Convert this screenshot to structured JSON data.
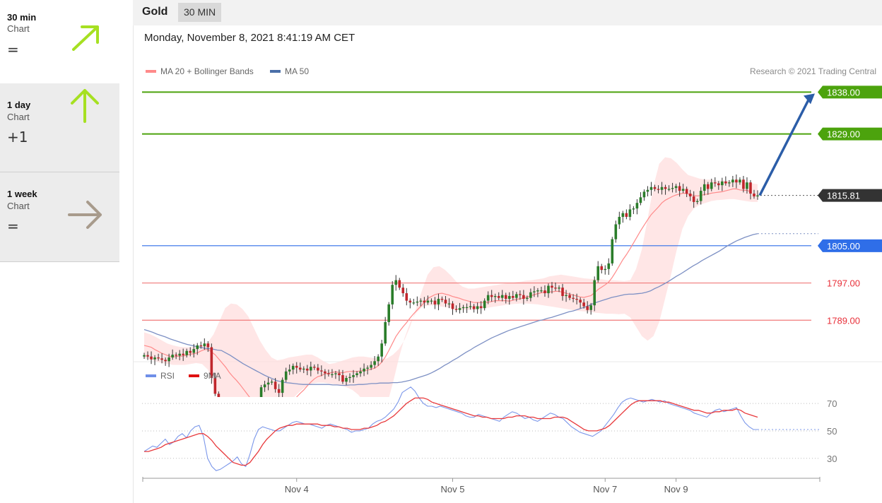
{
  "sidebar": [
    {
      "period": "30 min",
      "sub": "Chart",
      "value": "=",
      "arrow": "up-right",
      "color": "#9acd1c"
    },
    {
      "period": "1 day",
      "sub": "Chart",
      "value": "+1",
      "arrow": "up",
      "color": "#9acd1c"
    },
    {
      "period": "1 week",
      "sub": "Chart",
      "value": "=",
      "arrow": "right",
      "color": "#a89b8c"
    }
  ],
  "header": {
    "instrument": "Gold",
    "timeframe": "30 MIN"
  },
  "datetime": "Monday, November 8, 2021 8:41:19 AM CET",
  "chart_data": [
    {
      "type": "candlestick",
      "legend": [
        {
          "label": "MA 20 + Bollinger Bands",
          "color": "#ff8a8a"
        },
        {
          "label": "MA 50",
          "color": "#4a6fa8"
        }
      ],
      "credit": "Research © 2021 Trading Central",
      "ylim": [
        1781,
        1842
      ],
      "levels": [
        {
          "value": 1838.0,
          "label": "1838.00",
          "color": "#4ca30d",
          "text_color": "#ffffff",
          "kind": "target"
        },
        {
          "value": 1829.0,
          "label": "1829.00",
          "color": "#4ca30d",
          "text_color": "#ffffff",
          "kind": "resistance"
        },
        {
          "value": 1815.81,
          "label": "1815.81",
          "color": "#333333",
          "text_color": "#ffffff",
          "kind": "last"
        },
        {
          "value": 1805.0,
          "label": "1805.00",
          "color": "#2f6ee8",
          "text_color": "#ffffff",
          "kind": "pivot"
        },
        {
          "value": 1797.0,
          "label": "1797.00",
          "color": "#f07a7a",
          "text_color": "#e8303a",
          "kind": "support"
        },
        {
          "value": 1789.0,
          "label": "1789.00",
          "color": "#f07a7a",
          "text_color": "#e8303a",
          "kind": "support"
        }
      ],
      "close": [
        1781.5,
        1781.2,
        1780.6,
        1781.0,
        1780.8,
        1780.5,
        1780.2,
        1781.0,
        1781.6,
        1781.4,
        1781.8,
        1781.5,
        1782.4,
        1782.0,
        1782.8,
        1783.6,
        1783.4,
        1784.0,
        1783.2,
        1776.6,
        1773.2,
        1769.6,
        1766.2,
        1764.6,
        1764.0,
        1764.2,
        1764.5,
        1764.1,
        1764.8,
        1764.6,
        1765.5,
        1767.0,
        1770.8,
        1774.6,
        1775.2,
        1775.6,
        1775.8,
        1774.2,
        1773.4,
        1776.2,
        1778.0,
        1778.4,
        1779.2,
        1778.8,
        1778.4,
        1778.6,
        1778.2,
        1779.0,
        1778.8,
        1778.2,
        1778.0,
        1777.6,
        1777.4,
        1777.4,
        1777.6,
        1777.2,
        1775.8,
        1776.6,
        1776.8,
        1777.2,
        1777.6,
        1778.0,
        1778.6,
        1778.8,
        1779.4,
        1780.2,
        1781.2,
        1784.0,
        1788.6,
        1792.4,
        1796.6,
        1797.6,
        1796.0,
        1794.8,
        1793.2,
        1792.8,
        1792.8,
        1793.0,
        1793.2,
        1792.8,
        1793.2,
        1793.2,
        1792.4,
        1793.6,
        1793.4,
        1792.6,
        1792.6,
        1791.4,
        1791.2,
        1791.6,
        1791.8,
        1791.8,
        1792.0,
        1791.4,
        1792.0,
        1791.6,
        1793.2,
        1794.4,
        1794.0,
        1794.2,
        1793.8,
        1794.4,
        1793.6,
        1794.2,
        1793.8,
        1794.6,
        1794.4,
        1793.6,
        1793.8,
        1795.0,
        1795.2,
        1795.4,
        1795.4,
        1794.8,
        1796.4,
        1796.0,
        1795.8,
        1796.0,
        1794.2,
        1794.4,
        1793.8,
        1793.6,
        1793.4,
        1792.8,
        1792.0,
        1791.2,
        1792.2,
        1797.6,
        1800.6,
        1799.8,
        1800.0,
        1801.2,
        1806.4,
        1809.6,
        1811.2,
        1812.0,
        1811.2,
        1812.8,
        1813.0,
        1814.2,
        1815.4,
        1816.6,
        1817.0,
        1817.6,
        1817.2,
        1817.0,
        1817.6,
        1817.2,
        1817.2,
        1817.4,
        1817.8,
        1816.8,
        1817.2,
        1816.2,
        1815.6,
        1814.4,
        1814.6,
        1816.8,
        1818.2,
        1817.2,
        1818.6,
        1818.4,
        1818.0,
        1818.8,
        1818.4,
        1818.6,
        1819.2,
        1818.6,
        1819.2,
        1817.2,
        1818.6,
        1816.2,
        1815.6,
        1815.81
      ],
      "ma20": [
        1783.6,
        1783.4,
        1783.2,
        1782.7,
        1782.3,
        1781.9,
        1781.6,
        1781.3,
        1781.1,
        1781.2,
        1781.3,
        1781.3,
        1781.5,
        1781.7,
        1781.8,
        1782.0,
        1782.4,
        1782.7,
        1782.7,
        1782.2,
        1781.6,
        1780.7,
        1779.8,
        1778.9,
        1777.8,
        1776.9,
        1776.1,
        1775.2,
        1774.2,
        1773.2,
        1772.2,
        1771.3,
        1770.7,
        1770.2,
        1769.9,
        1769.5,
        1769.3,
        1769.2,
        1769.4,
        1769.7,
        1770.3,
        1771.1,
        1771.7,
        1772.5,
        1773.3,
        1774.0,
        1774.9,
        1775.7,
        1776.4,
        1776.9,
        1777.1,
        1777.5,
        1777.6,
        1777.8,
        1777.9,
        1777.8,
        1777.7,
        1777.9,
        1778.0,
        1778.0,
        1778.0,
        1778.1,
        1778.2,
        1778.3,
        1778.5,
        1778.7,
        1779.2,
        1780.0,
        1781.1,
        1782.5,
        1784.0,
        1785.5,
        1786.6,
        1787.6,
        1788.5,
        1789.5,
        1790.4,
        1791.2,
        1792.0,
        1792.8,
        1793.7,
        1794.1,
        1794.5,
        1794.7,
        1794.8,
        1794.6,
        1794.4,
        1794.1,
        1793.9,
        1793.7,
        1793.4,
        1793.2,
        1793.0,
        1792.8,
        1792.8,
        1792.8,
        1792.8,
        1792.9,
        1793.0,
        1793.2,
        1793.2,
        1793.2,
        1793.2,
        1793.1,
        1793.3,
        1793.5,
        1793.6,
        1793.8,
        1794.0,
        1794.2,
        1794.5,
        1794.7,
        1794.9,
        1795.0,
        1795.1,
        1795.1,
        1795.2,
        1795.2,
        1795.0,
        1794.8,
        1794.6,
        1794.4,
        1794.2,
        1794.0,
        1793.9,
        1794.1,
        1794.3,
        1794.9,
        1795.6,
        1796.1,
        1796.6,
        1797.2,
        1798.2,
        1799.4,
        1800.7,
        1802.0,
        1803.1,
        1804.3,
        1805.6,
        1806.9,
        1808.2,
        1809.4,
        1810.6,
        1811.7,
        1812.5,
        1813.3,
        1814.2,
        1814.8,
        1815.2,
        1815.6,
        1815.9,
        1816.1,
        1816.3,
        1816.2,
        1816.0,
        1815.8,
        1815.7,
        1815.8,
        1816.0,
        1816.1,
        1816.3,
        1816.4,
        1816.5,
        1816.6,
        1816.8,
        1817.0,
        1817.2,
        1817.2,
        1817.0,
        1816.9,
        1816.9,
        1816.6
      ],
      "ma50": [
        1787.0,
        1786.7,
        1786.4,
        1786.0,
        1785.7,
        1785.4,
        1785.0,
        1784.7,
        1784.4,
        1784.1,
        1783.8,
        1783.6,
        1783.4,
        1783.2,
        1783.0,
        1782.9,
        1782.8,
        1782.6,
        1782.5,
        1782.0,
        1781.5,
        1780.9,
        1780.3,
        1779.7,
        1779.2,
        1778.7,
        1778.2,
        1777.7,
        1777.2,
        1776.8,
        1776.4,
        1776.0,
        1775.8,
        1775.6,
        1775.5,
        1775.4,
        1775.3,
        1775.2,
        1775.2,
        1775.2,
        1775.2,
        1775.2,
        1775.2,
        1775.2,
        1775.1,
        1775.1,
        1775.0,
        1775.0,
        1775.1,
        1775.1,
        1775.2,
        1775.2,
        1775.3,
        1775.4,
        1775.4,
        1775.5,
        1775.5,
        1775.5,
        1775.6,
        1775.6,
        1775.7,
        1775.9,
        1776.1,
        1776.4,
        1776.7,
        1777.0,
        1777.3,
        1777.7,
        1778.2,
        1778.7,
        1779.3,
        1779.8,
        1780.4,
        1780.9,
        1781.5,
        1782.1,
        1782.6,
        1783.2,
        1783.7,
        1784.2,
        1784.7,
        1785.2,
        1785.6,
        1786.0,
        1786.4,
        1786.8,
        1787.1,
        1787.4,
        1787.7,
        1788.0,
        1788.3,
        1788.6,
        1788.9,
        1789.1,
        1789.4,
        1789.6,
        1789.9,
        1790.2,
        1790.5,
        1790.8,
        1791.0,
        1791.3,
        1791.6,
        1791.9,
        1792.3,
        1792.7,
        1793.0,
        1793.3,
        1793.6,
        1793.9,
        1794.1,
        1794.3,
        1794.5,
        1794.6,
        1794.6,
        1794.7,
        1794.8,
        1795.0,
        1795.3,
        1795.8,
        1796.2,
        1796.7,
        1797.2,
        1797.8,
        1798.4,
        1798.9,
        1799.5,
        1800.1,
        1800.7,
        1801.2,
        1801.8,
        1802.3,
        1802.8,
        1803.3,
        1803.8,
        1804.4,
        1805.0,
        1805.5,
        1806.0,
        1806.4,
        1806.8,
        1807.1,
        1807.4,
        1807.6
      ],
      "bb_upper": [
        1786.4,
        1786.0,
        1785.4,
        1784.7,
        1784.0,
        1783.6,
        1783.3,
        1783.2,
        1783.2,
        1783.3,
        1783.5,
        1784.2,
        1786.0,
        1788.8,
        1791.6,
        1792.6,
        1792.4,
        1791.4,
        1789.8,
        1787.2,
        1784.6,
        1782.6,
        1781.0,
        1780.4,
        1780.6,
        1781.0,
        1781.2,
        1781.4,
        1781.6,
        1781.6,
        1781.0,
        1780.2,
        1779.6,
        1779.8,
        1780.2,
        1780.6,
        1781.0,
        1781.2,
        1781.2,
        1781.0,
        1780.8,
        1780.6,
        1780.8,
        1781.6,
        1782.8,
        1784.8,
        1787.8,
        1791.6,
        1795.4,
        1798.8,
        1800.4,
        1800.6,
        1799.8,
        1798.6,
        1797.2,
        1796.2,
        1795.8,
        1795.8,
        1796.0,
        1796.2,
        1796.4,
        1796.6,
        1796.8,
        1797.0,
        1797.1,
        1797.3,
        1797.5,
        1797.6,
        1797.8,
        1798.0,
        1798.4,
        1798.6,
        1798.8,
        1798.6,
        1798.4,
        1798.2,
        1798.0,
        1797.9,
        1797.8,
        1797.8,
        1797.6,
        1797.6,
        1797.5,
        1797.4,
        1797.6,
        1800.0,
        1804.2,
        1810.8,
        1817.8,
        1822.6,
        1824.0,
        1823.8,
        1822.8,
        1821.4,
        1820.2,
        1819.8,
        1819.4,
        1819.2,
        1819.2,
        1819.0,
        1819.0,
        1819.0,
        1819.0,
        1818.8,
        1818.6,
        1818.4,
        1818.2
      ],
      "bb_lower": [
        1780.8,
        1780.6,
        1780.2,
        1779.8,
        1779.6,
        1779.4,
        1779.4,
        1779.4,
        1779.6,
        1779.8,
        1779.6,
        1778.4,
        1775.2,
        1770.6,
        1766.4,
        1763.4,
        1762.0,
        1761.6,
        1762.2,
        1763.0,
        1764.0,
        1765.0,
        1766.0,
        1767.2,
        1768.8,
        1770.8,
        1772.6,
        1773.8,
        1774.8,
        1775.4,
        1775.6,
        1775.6,
        1775.4,
        1775.2,
        1775.0,
        1774.6,
        1774.0,
        1773.0,
        1771.4,
        1769.6,
        1768.4,
        1768.8,
        1771.0,
        1775.6,
        1780.8,
        1785.2,
        1788.6,
        1790.6,
        1791.8,
        1792.2,
        1792.2,
        1792.0,
        1791.8,
        1791.6,
        1791.4,
        1791.2,
        1791.2,
        1791.2,
        1791.4,
        1791.6,
        1791.8,
        1792.0,
        1792.2,
        1792.4,
        1792.5,
        1792.6,
        1792.6,
        1792.5,
        1792.4,
        1792.2,
        1792.0,
        1791.8,
        1791.6,
        1791.4,
        1791.2,
        1791.0,
        1790.9,
        1790.8,
        1790.6,
        1790.5,
        1790.4,
        1790.4,
        1790.3,
        1790.4,
        1789.6,
        1787.6,
        1785.6,
        1784.6,
        1785.6,
        1788.6,
        1793.6,
        1798.6,
        1804.0,
        1808.6,
        1811.4,
        1813.0,
        1813.8,
        1814.2,
        1814.6,
        1814.8,
        1814.9,
        1815.0,
        1815.0,
        1814.8,
        1814.6,
        1814.4,
        1814.4
      ],
      "projection": {
        "from": 1815.81,
        "to": 1838.0
      },
      "x_ticks": [
        {
          "index": 43,
          "label": "Nov 4"
        },
        {
          "index": 87,
          "label": "Nov 5"
        },
        {
          "index": 130,
          "label": "Nov 7"
        },
        {
          "index": 150,
          "label": "Nov 9"
        }
      ]
    },
    {
      "type": "line",
      "legend": [
        {
          "label": "RSI",
          "color": "#6f8fe8"
        },
        {
          "label": "9MA",
          "color": "#e01010"
        }
      ],
      "ylim": [
        17,
        85
      ],
      "guides": [
        {
          "value": 70,
          "label": "70"
        },
        {
          "value": 50,
          "label": "50"
        },
        {
          "value": 30,
          "label": "30"
        }
      ],
      "rsi": [
        35,
        37,
        39,
        38,
        41,
        44,
        40,
        42,
        46,
        48,
        45,
        50,
        53,
        54,
        46,
        30,
        24,
        21,
        22,
        24,
        26,
        28,
        31,
        26,
        24,
        33,
        44,
        51,
        53,
        52,
        51,
        50,
        50,
        52,
        54,
        56,
        57,
        56,
        55,
        55,
        54,
        53,
        52,
        54,
        55,
        54,
        53,
        52,
        51,
        49,
        50,
        50,
        51,
        52,
        55,
        57,
        58,
        60,
        63,
        66,
        71,
        78,
        80,
        82,
        79,
        74,
        70,
        68,
        68,
        67,
        68,
        67,
        66,
        65,
        64,
        63,
        61,
        60,
        60,
        62,
        61,
        60,
        59,
        58,
        57,
        60,
        62,
        64,
        63,
        61,
        59,
        60,
        58,
        57,
        59,
        61,
        63,
        62,
        60,
        59,
        56,
        53,
        51,
        49,
        48,
        47,
        46,
        48,
        50,
        54,
        58,
        62,
        67,
        71,
        73,
        74,
        73,
        72,
        71,
        72,
        73,
        72,
        71,
        72,
        70,
        69,
        68,
        67,
        66,
        65,
        63,
        62,
        61,
        60,
        63,
        65,
        66,
        64,
        65,
        66,
        67,
        61,
        56,
        53,
        51,
        51
      ],
      "ma9": [
        35,
        35,
        36,
        37,
        38,
        40,
        41,
        42,
        43,
        44,
        45,
        46,
        47,
        48,
        48,
        46,
        43,
        39,
        36,
        33,
        30,
        27,
        26,
        25,
        25,
        27,
        31,
        35,
        40,
        44,
        47,
        50,
        52,
        53,
        54,
        54,
        55,
        55,
        55,
        55,
        55,
        55,
        54,
        54,
        54,
        53,
        53,
        52,
        52,
        51,
        51,
        51,
        52,
        52,
        53,
        54,
        56,
        57,
        59,
        61,
        64,
        67,
        70,
        72,
        74,
        74,
        74,
        73,
        71,
        70,
        69,
        68,
        67,
        66,
        65,
        64,
        63,
        62,
        61,
        61,
        60,
        60,
        59,
        59,
        59,
        59,
        60,
        60,
        61,
        61,
        61,
        60,
        60,
        59,
        59,
        59,
        59,
        60,
        60,
        60,
        59,
        57,
        55,
        53,
        51,
        50,
        50,
        50,
        51,
        52,
        54,
        57,
        60,
        63,
        66,
        69,
        71,
        72,
        72,
        72,
        72,
        72,
        72,
        71,
        71,
        70,
        69,
        68,
        67,
        66,
        65,
        65,
        64,
        63,
        63,
        64,
        64,
        65,
        65,
        65,
        66,
        65,
        63,
        62,
        61,
        60
      ],
      "x_ticks": [
        {
          "index": 43,
          "label": "Nov 4"
        },
        {
          "index": 87,
          "label": "Nov 5"
        },
        {
          "index": 130,
          "label": "Nov 7"
        },
        {
          "index": 150,
          "label": "Nov 9"
        }
      ]
    }
  ]
}
